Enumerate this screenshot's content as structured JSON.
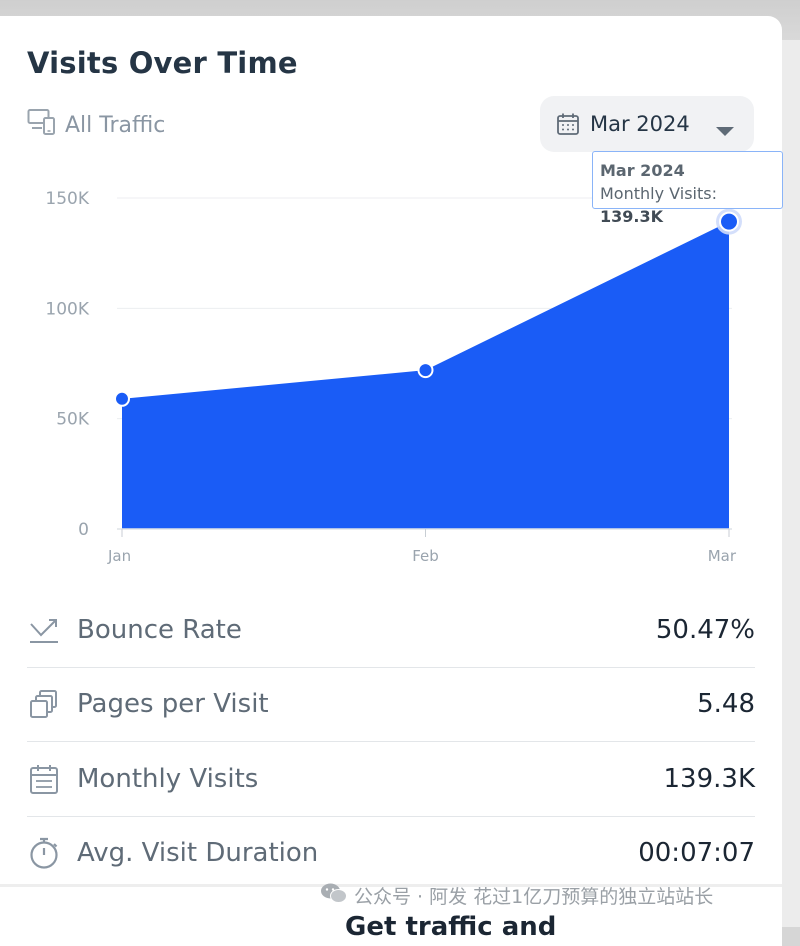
{
  "header": {
    "title": "Visits Over Time",
    "traffic_filter": "All Traffic",
    "date_picker_value": "Mar 2024"
  },
  "tooltip": {
    "title": "Mar 2024",
    "label": "Monthly Visits:",
    "value": "139.3K"
  },
  "chart_data": {
    "type": "area",
    "categories": [
      "Jan",
      "Feb",
      "Mar"
    ],
    "values": [
      59000,
      72000,
      139300
    ],
    "ylim": [
      0,
      150000
    ],
    "yticks": [
      0,
      50000,
      100000,
      150000
    ],
    "ytick_labels": [
      "0",
      "50K",
      "100K",
      "150K"
    ],
    "grid": true,
    "color": "#1a5cf6"
  },
  "metrics": [
    {
      "icon": "bounce-rate-icon",
      "label": "Bounce Rate",
      "value": "50.47%"
    },
    {
      "icon": "pages-per-visit-icon",
      "label": "Pages per Visit",
      "value": "5.48"
    },
    {
      "icon": "calendar-icon",
      "label": "Monthly Visits",
      "value": "139.3K"
    },
    {
      "icon": "stopwatch-icon",
      "label": "Avg. Visit Duration",
      "value": "00:07:07"
    }
  ],
  "watermark": "公众号 · 阿发 花过1亿刀预算的独立站站长",
  "cutoff_heading": "Get traffic and"
}
